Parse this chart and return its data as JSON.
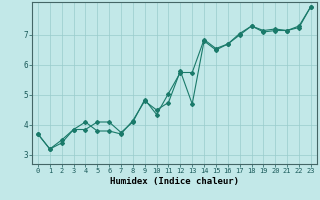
{
  "title": "",
  "xlabel": "Humidex (Indice chaleur)",
  "ylabel": "",
  "bg_color": "#c2e8e8",
  "grid_color": "#99cccc",
  "line_color": "#1a7a6a",
  "x_min": -0.5,
  "x_max": 23.5,
  "y_min": 2.7,
  "y_max": 8.1,
  "yticks": [
    3,
    4,
    5,
    6,
    7
  ],
  "xticks": [
    0,
    1,
    2,
    3,
    4,
    5,
    6,
    7,
    8,
    9,
    10,
    11,
    12,
    13,
    14,
    15,
    16,
    17,
    18,
    19,
    20,
    21,
    22,
    23
  ],
  "line1_x": [
    0,
    1,
    2,
    3,
    4,
    5,
    6,
    7,
    8,
    9,
    10,
    11,
    12,
    13,
    14,
    15,
    16,
    17,
    18,
    19,
    20,
    21,
    22,
    23
  ],
  "line1_y": [
    3.7,
    3.2,
    3.5,
    3.85,
    4.1,
    3.8,
    3.8,
    3.7,
    4.15,
    4.8,
    4.5,
    4.75,
    5.8,
    4.7,
    6.8,
    6.5,
    6.7,
    7.0,
    7.3,
    7.1,
    7.15,
    7.15,
    7.3,
    7.95
  ],
  "line2_x": [
    0,
    1,
    2,
    3,
    4,
    5,
    6,
    7,
    8,
    9,
    10,
    11,
    12,
    13,
    14,
    15,
    16,
    17,
    18,
    19,
    20,
    21,
    22,
    23
  ],
  "line2_y": [
    3.7,
    3.2,
    3.4,
    3.85,
    3.85,
    4.1,
    4.1,
    3.75,
    4.1,
    4.85,
    4.35,
    5.05,
    5.75,
    5.75,
    6.85,
    6.55,
    6.7,
    7.05,
    7.3,
    7.15,
    7.2,
    7.15,
    7.25,
    7.95
  ],
  "marker_size": 2.0,
  "linewidth": 0.8,
  "tick_fontsize": 5.0,
  "xlabel_fontsize": 6.5
}
